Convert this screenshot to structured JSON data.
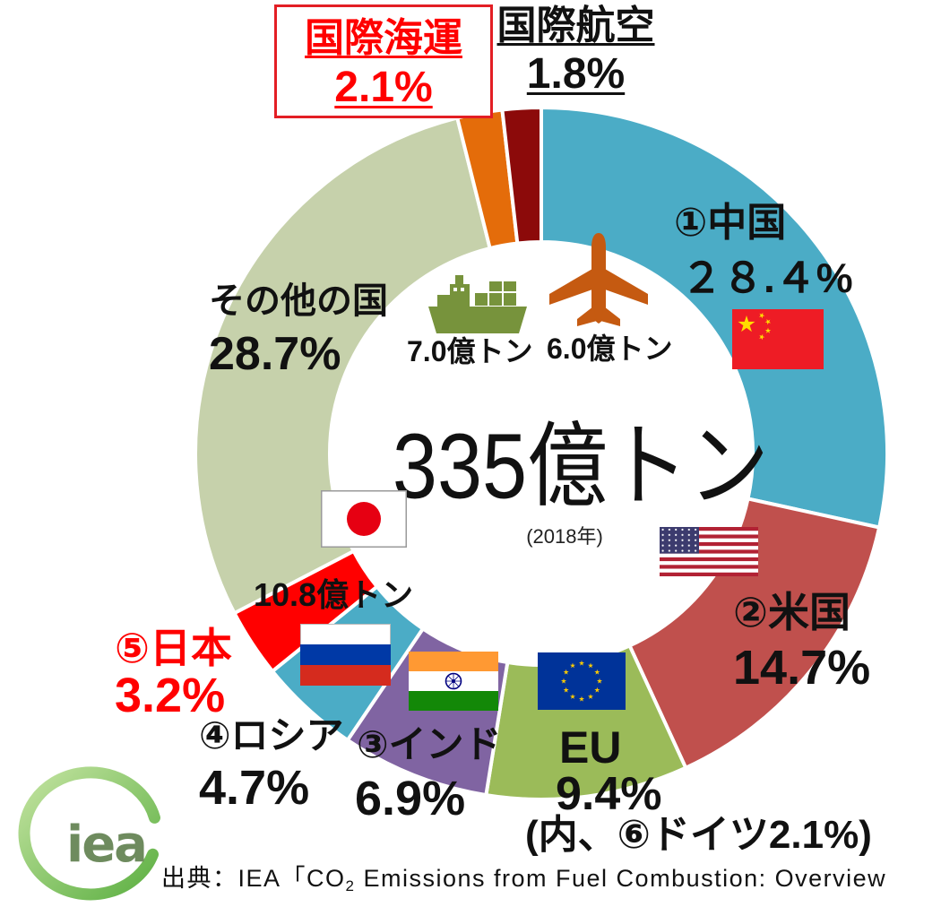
{
  "chart_data": {
    "type": "pie",
    "donut": true,
    "center_total": "335億トン",
    "center_year": "(2018年)",
    "slices": [
      {
        "label": "①中国",
        "value": 28.4,
        "value_text": "２８.４%",
        "color": "#4BACC6",
        "flag_icon": "china-flag-icon"
      },
      {
        "label": "②米国",
        "value": 14.7,
        "value_text": "14.7%",
        "color": "#C0504D",
        "flag_icon": "usa-flag-icon"
      },
      {
        "label": "EU",
        "value": 9.4,
        "value_text": "9.4%",
        "note": "(内、⑥ドイツ2.1%)",
        "color": "#9BBB59",
        "flag_icon": "eu-flag-icon"
      },
      {
        "label": "③インド",
        "value": 6.9,
        "value_text": "6.9%",
        "color": "#8064A2",
        "flag_icon": "india-flag-icon"
      },
      {
        "label": "④ロシア",
        "value": 4.7,
        "value_text": "4.7%",
        "color": "#4BACC6",
        "flag_icon": "russia-flag-icon"
      },
      {
        "label": "⑤日本",
        "value": 3.2,
        "value_text": "3.2%",
        "amount_text": "10.8億トン",
        "color": "#FF0000",
        "label_color": "#FF0000",
        "flag_icon": "japan-flag-icon"
      },
      {
        "label": "その他の国",
        "value": 28.7,
        "value_text": "28.7%",
        "color": "#C6D1AB"
      },
      {
        "label": "国際海運",
        "value": 2.1,
        "value_text": "2.1%",
        "amount_text": "7.0億トン",
        "color": "#E46C0A",
        "label_color": "#FF0000",
        "icon": "cargo-ship-icon",
        "icon_color": "#77933C"
      },
      {
        "label": "国際航空",
        "value": 1.8,
        "value_text": "1.8%",
        "amount_text": "6.0億トン",
        "color": "#8C0A0A",
        "icon": "airplane-icon",
        "icon_color": "#C55A11"
      }
    ]
  },
  "source": {
    "before_subscript": "出典：IEA「CO",
    "subscript": "2",
    "after_subscript": " Emissions from Fuel Combustion: Overview"
  },
  "logo": {
    "text": "iea",
    "icon": "iea-logo-icon",
    "color": "#6E8B5E",
    "ring_color": "#8CC63F"
  }
}
